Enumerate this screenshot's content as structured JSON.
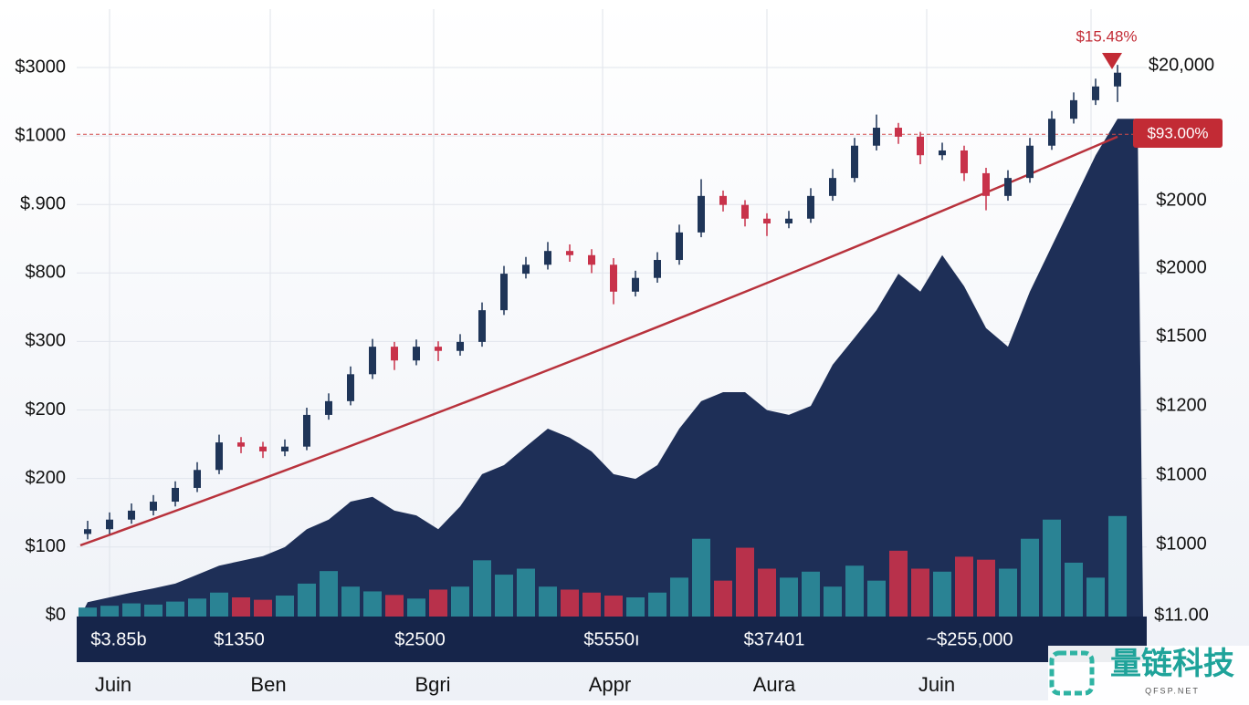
{
  "chart_data": {
    "type": "candlestick",
    "ylim": [
      0,
      100
    ],
    "up_color": "#1f3558",
    "down_color": "#c8324a",
    "area_color": "#1e2f57",
    "volume_up_color": "#2a8394",
    "volume_down_color": "#b8314b",
    "trend_color": "#b8323c",
    "candles": [
      {
        "o": 13.8,
        "h": 16.0,
        "l": 12.9,
        "c": 14.6
      },
      {
        "o": 14.6,
        "h": 17.4,
        "l": 13.8,
        "c": 16.2
      },
      {
        "o": 16.2,
        "h": 18.9,
        "l": 15.5,
        "c": 17.7
      },
      {
        "o": 17.7,
        "h": 20.3,
        "l": 16.9,
        "c": 19.2
      },
      {
        "o": 19.2,
        "h": 22.6,
        "l": 18.4,
        "c": 21.5
      },
      {
        "o": 21.5,
        "h": 25.8,
        "l": 20.8,
        "c": 24.5
      },
      {
        "o": 24.5,
        "h": 30.4,
        "l": 23.8,
        "c": 29.1
      },
      {
        "o": 29.1,
        "h": 30.0,
        "l": 27.3,
        "c": 28.4
      },
      {
        "o": 28.4,
        "h": 29.2,
        "l": 26.5,
        "c": 27.6
      },
      {
        "o": 27.6,
        "h": 29.6,
        "l": 26.8,
        "c": 28.4
      },
      {
        "o": 28.4,
        "h": 34.9,
        "l": 27.8,
        "c": 33.7
      },
      {
        "o": 33.7,
        "h": 37.3,
        "l": 32.9,
        "c": 36.0
      },
      {
        "o": 36.0,
        "h": 41.8,
        "l": 35.3,
        "c": 40.5
      },
      {
        "o": 40.5,
        "h": 46.4,
        "l": 39.7,
        "c": 45.1
      },
      {
        "o": 45.1,
        "h": 45.9,
        "l": 41.2,
        "c": 42.8
      },
      {
        "o": 42.8,
        "h": 46.3,
        "l": 42.0,
        "c": 45.1
      },
      {
        "o": 45.1,
        "h": 46.0,
        "l": 42.7,
        "c": 44.4
      },
      {
        "o": 44.4,
        "h": 47.2,
        "l": 43.6,
        "c": 45.9
      },
      {
        "o": 45.9,
        "h": 52.5,
        "l": 45.1,
        "c": 51.2
      },
      {
        "o": 51.2,
        "h": 58.6,
        "l": 50.4,
        "c": 57.3
      },
      {
        "o": 57.3,
        "h": 60.1,
        "l": 56.5,
        "c": 58.8
      },
      {
        "o": 58.8,
        "h": 62.6,
        "l": 58.0,
        "c": 61.1
      },
      {
        "o": 61.1,
        "h": 62.2,
        "l": 59.3,
        "c": 60.4
      },
      {
        "o": 60.4,
        "h": 61.4,
        "l": 57.4,
        "c": 58.8
      },
      {
        "o": 58.8,
        "h": 59.9,
        "l": 52.2,
        "c": 54.3
      },
      {
        "o": 54.3,
        "h": 57.8,
        "l": 53.5,
        "c": 56.6
      },
      {
        "o": 56.6,
        "h": 60.9,
        "l": 55.8,
        "c": 59.6
      },
      {
        "o": 59.6,
        "h": 65.5,
        "l": 58.8,
        "c": 64.2
      },
      {
        "o": 64.2,
        "h": 73.1,
        "l": 63.4,
        "c": 70.3
      },
      {
        "o": 70.3,
        "h": 71.2,
        "l": 67.7,
        "c": 68.8
      },
      {
        "o": 68.8,
        "h": 69.6,
        "l": 65.2,
        "c": 66.5
      },
      {
        "o": 66.5,
        "h": 67.4,
        "l": 63.6,
        "c": 65.7
      },
      {
        "o": 65.7,
        "h": 67.8,
        "l": 64.9,
        "c": 66.5
      },
      {
        "o": 66.5,
        "h": 71.6,
        "l": 65.8,
        "c": 70.3
      },
      {
        "o": 70.3,
        "h": 74.8,
        "l": 69.5,
        "c": 73.3
      },
      {
        "o": 73.3,
        "h": 80.0,
        "l": 72.6,
        "c": 78.7
      },
      {
        "o": 78.7,
        "h": 83.9,
        "l": 77.9,
        "c": 81.7
      },
      {
        "o": 81.7,
        "h": 82.5,
        "l": 79.0,
        "c": 80.2
      },
      {
        "o": 80.2,
        "h": 81.0,
        "l": 75.6,
        "c": 77.1
      },
      {
        "o": 77.1,
        "h": 79.2,
        "l": 76.3,
        "c": 77.9
      },
      {
        "o": 77.9,
        "h": 78.7,
        "l": 72.8,
        "c": 74.1
      },
      {
        "o": 74.1,
        "h": 75.0,
        "l": 67.9,
        "c": 70.3
      },
      {
        "o": 70.3,
        "h": 74.6,
        "l": 69.5,
        "c": 73.3
      },
      {
        "o": 73.3,
        "h": 80.0,
        "l": 72.5,
        "c": 78.7
      },
      {
        "o": 78.7,
        "h": 84.5,
        "l": 78.0,
        "c": 83.2
      },
      {
        "o": 83.2,
        "h": 87.6,
        "l": 82.4,
        "c": 86.3
      },
      {
        "o": 86.3,
        "h": 89.9,
        "l": 85.5,
        "c": 88.6
      },
      {
        "o": 88.6,
        "h": 92.2,
        "l": 86.0,
        "c": 90.9
      }
    ],
    "area": [
      2.4,
      3.2,
      4.0,
      4.7,
      5.5,
      7.0,
      8.5,
      9.3,
      10.1,
      11.6,
      14.6,
      16.2,
      19.2,
      20.0,
      17.7,
      16.9,
      14.6,
      18.4,
      23.8,
      25.3,
      28.4,
      31.4,
      29.9,
      27.6,
      23.8,
      23.0,
      25.3,
      31.4,
      36.0,
      37.5,
      37.5,
      34.5,
      33.7,
      35.2,
      42.1,
      46.6,
      51.2,
      57.3,
      54.3,
      60.4,
      55.2,
      48.2,
      45.1,
      54.3,
      61.9,
      69.5,
      77.1,
      83.2
    ],
    "volume": [
      1.5,
      1.8,
      2.2,
      2.0,
      2.5,
      3.0,
      4.0,
      3.2,
      2.8,
      3.5,
      5.5,
      7.6,
      5.0,
      4.2,
      3.6,
      3.0,
      4.5,
      5.0,
      9.4,
      7.0,
      8.0,
      5.0,
      4.5,
      4.0,
      3.5,
      3.2,
      4.0,
      6.5,
      13.0,
      6.0,
      11.5,
      8.0,
      6.5,
      7.5,
      5.0,
      8.5,
      6.0,
      11.0,
      8.0,
      7.5,
      10.0,
      9.5,
      8.0,
      13.0,
      16.2,
      9.0,
      6.5,
      16.8
    ],
    "trend": [
      11.9,
      80.2
    ],
    "reference_line": 80.6,
    "left_axis_labels": [
      "$3000",
      "$1000",
      "$.900",
      "$800",
      "$300",
      "$200",
      "$200",
      "$100",
      "$0"
    ],
    "right_axis_labels": [
      "$20,000",
      "$2000",
      "$2000",
      "$1500",
      "$1200",
      "$1000",
      "$1000",
      "$11.00"
    ],
    "band_labels": [
      "$3.85b",
      "$1350",
      "$2500",
      "$5550ı",
      "$37401",
      "~$255,000"
    ],
    "x_labels": [
      "Juin",
      "Ben",
      "Bgri",
      "Appr",
      "Aura",
      "Juin"
    ],
    "annotation_top": "$15.48%",
    "annotation_badge": "$93.00%"
  },
  "watermark": {
    "name": "量链科技",
    "site": "QFSP.NET"
  }
}
